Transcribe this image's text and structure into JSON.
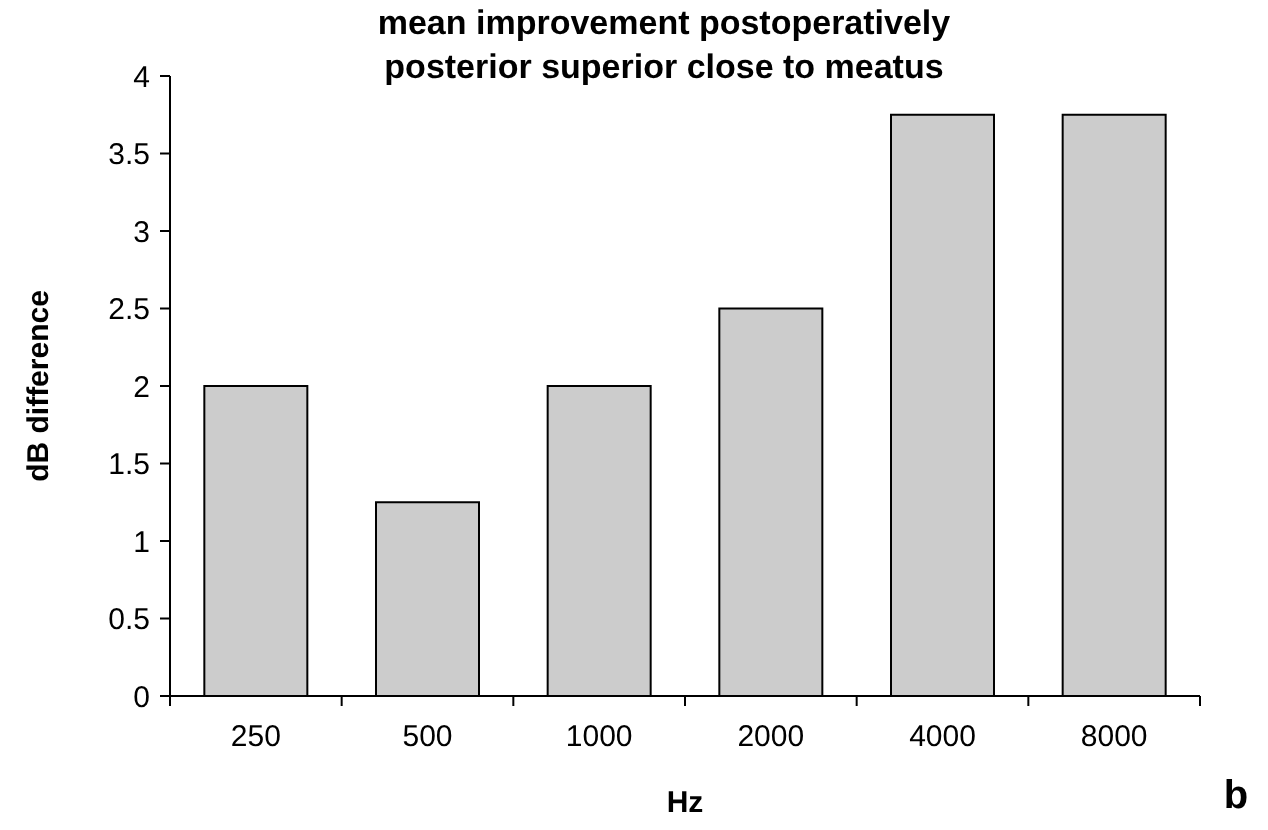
{
  "chart_data": {
    "type": "bar",
    "title": "mean improvement postoperatively\nposterior superior close to meatus",
    "xlabel": "Hz",
    "ylabel": "dB difference",
    "annotations": [
      "b"
    ],
    "categories": [
      "250",
      "500",
      "1000",
      "2000",
      "4000",
      "8000"
    ],
    "values": [
      2,
      1.25,
      2,
      2.5,
      3.75,
      3.75
    ],
    "color": "#cccccc",
    "ylim": [
      0,
      4
    ],
    "yticks": [
      0,
      0.5,
      1,
      1.5,
      2,
      2.5,
      3,
      3.5,
      4
    ]
  }
}
